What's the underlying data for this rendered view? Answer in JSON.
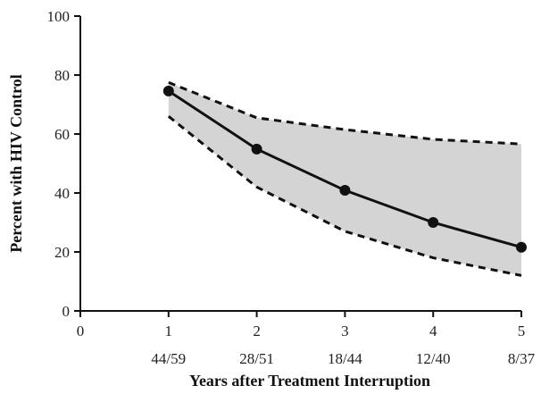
{
  "chart_data": {
    "type": "line",
    "title": "",
    "xlabel": "Years after Treatment Interruption",
    "ylabel": "Percent with HIV Control",
    "xlim": [
      0,
      5
    ],
    "ylim": [
      0,
      100
    ],
    "x_ticks": [
      "0",
      "1",
      "2",
      "3",
      "4",
      "5"
    ],
    "y_ticks": [
      "0",
      "20",
      "40",
      "60",
      "80",
      "100"
    ],
    "x": [
      1,
      2,
      3,
      4,
      5
    ],
    "ratios": [
      "44/59",
      "28/51",
      "18/44",
      "12/40",
      "8/37"
    ],
    "series": [
      {
        "values": [
          74.6,
          54.9,
          40.9,
          30.0,
          21.6
        ]
      }
    ],
    "band": {
      "upper": [
        77.5,
        65.5,
        61.5,
        58.2,
        56.6
      ],
      "lower": [
        66.0,
        42.0,
        27.0,
        18.0,
        12.0
      ]
    },
    "grid": false,
    "legend": "none"
  },
  "colors": {
    "band_fill": "#d4d4d4",
    "line": "#111111",
    "markers": "#111111",
    "axes": "#111111"
  }
}
